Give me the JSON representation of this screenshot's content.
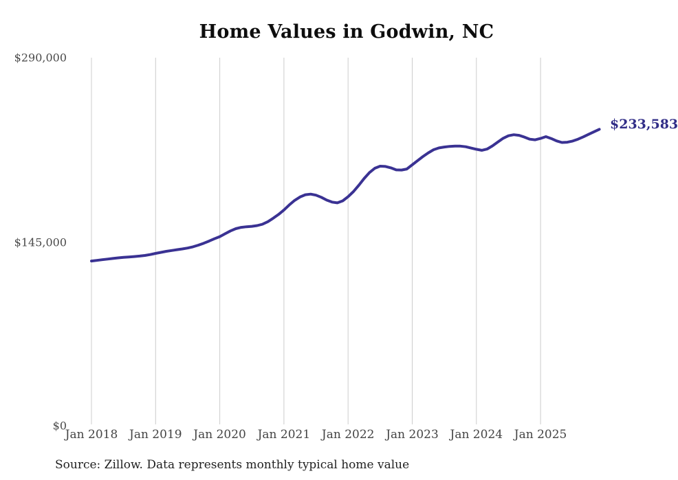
{
  "title": "Home Values in Godwin, NC",
  "source_note": "Source: Zillow. Data represents monthly typical home value",
  "end_label": "$233,583",
  "colors": {
    "line": "#3a3293",
    "end_label_text": "#312d87",
    "gridline": "#cccccc",
    "axis_text": "#4a4a4a",
    "title_text": "#0d0d0d",
    "background": "#ffffff"
  },
  "chart_data": {
    "type": "line",
    "title": "Home Values in Godwin, NC",
    "xlabel": "",
    "ylabel": "",
    "interval": "monthly",
    "x_start": "Jan 2018",
    "x_end": "Dec 2025",
    "x_tick_labels": [
      "Jan 2018",
      "Jan 2019",
      "Jan 2020",
      "Jan 2021",
      "Jan 2022",
      "Jan 2023",
      "Jan 2024",
      "Jan 2025"
    ],
    "y_tick_labels": [
      "$0",
      "$145,000",
      "$290,000"
    ],
    "y_ticks": [
      0,
      145000,
      290000
    ],
    "ylim": [
      0,
      290000
    ],
    "grid": "vertical-only",
    "legend": "none",
    "annotation": "$233,583",
    "series": [
      {
        "name": "Typical home value",
        "final_value": 233583,
        "final_label": "$233,583",
        "values": [
          129800,
          130300,
          130800,
          131300,
          131800,
          132300,
          132700,
          133000,
          133300,
          133700,
          134200,
          134900,
          135800,
          136600,
          137400,
          138100,
          138700,
          139300,
          140000,
          141000,
          142300,
          143800,
          145500,
          147300,
          149000,
          151300,
          153500,
          155300,
          156300,
          156800,
          157100,
          157700,
          158800,
          160800,
          163500,
          166500,
          170000,
          174000,
          177500,
          180200,
          182000,
          182500,
          181700,
          180000,
          177800,
          176200,
          175600,
          177200,
          180500,
          184500,
          189500,
          194800,
          199500,
          202900,
          204500,
          204300,
          203200,
          201600,
          201500,
          202300,
          205600,
          208900,
          212100,
          215000,
          217500,
          218900,
          219600,
          220100,
          220300,
          220300,
          219800,
          218800,
          217800,
          217000,
          218000,
          220500,
          223500,
          226500,
          228500,
          229300,
          228800,
          227400,
          225800,
          225300,
          226400,
          227800,
          226300,
          224400,
          223200,
          223400,
          224300,
          225800,
          227600,
          229600,
          231600,
          233583
        ]
      }
    ]
  }
}
